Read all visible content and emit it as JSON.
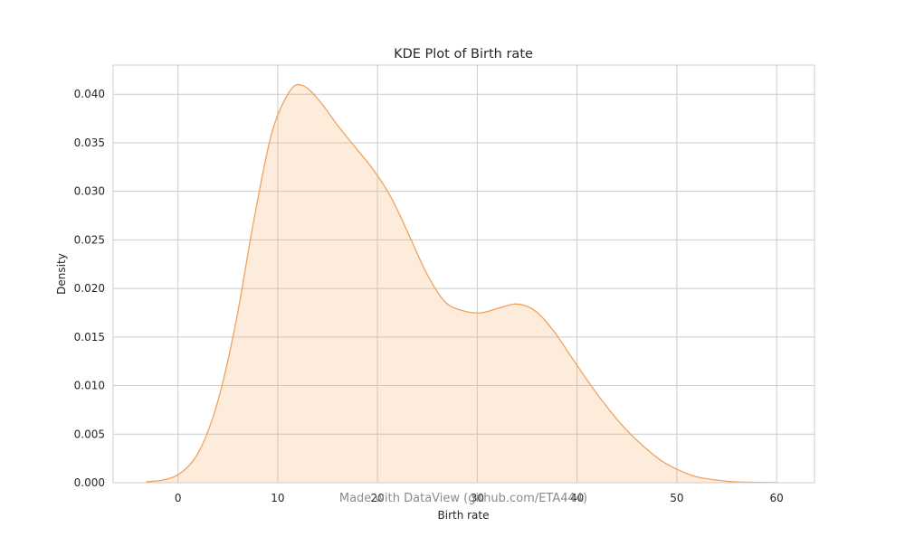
{
  "chart_data": {
    "type": "area",
    "title": "KDE Plot of Birth rate",
    "xlabel": "Birth rate",
    "ylabel": "Density",
    "xlim": [
      -6.5,
      63.8
    ],
    "ylim": [
      0,
      0.043
    ],
    "xticks": [
      0,
      10,
      20,
      30,
      40,
      50,
      60
    ],
    "xtick_labels": [
      "0",
      "10",
      "20",
      "30",
      "40",
      "50",
      "60"
    ],
    "yticks": [
      0.0,
      0.005,
      0.01,
      0.015,
      0.02,
      0.025,
      0.03,
      0.035,
      0.04
    ],
    "ytick_labels": [
      "0.000",
      "0.005",
      "0.010",
      "0.015",
      "0.020",
      "0.025",
      "0.030",
      "0.035",
      "0.040"
    ],
    "grid": true,
    "series": [
      {
        "x": [
          -3.2,
          -1.4,
          0.4,
          2.2,
          4.0,
          5.8,
          7.6,
          9.4,
          11.2,
          12.5,
          14.2,
          16.0,
          17.8,
          19.6,
          21.4,
          23.2,
          25.0,
          26.8,
          28.6,
          30.4,
          32.2,
          34.0,
          35.8,
          37.6,
          39.4,
          41.2,
          43.0,
          44.8,
          46.6,
          48.4,
          50.2,
          52.0,
          53.8,
          55.6,
          57.4,
          59.2,
          60.2
        ],
        "y": [
          0.0001,
          0.0003,
          0.0011,
          0.0034,
          0.0084,
          0.0165,
          0.027,
          0.036,
          0.0403,
          0.0409,
          0.0393,
          0.0368,
          0.0345,
          0.0322,
          0.0293,
          0.0254,
          0.0214,
          0.0186,
          0.0177,
          0.0175,
          0.018,
          0.0184,
          0.0177,
          0.0157,
          0.013,
          0.0103,
          0.0078,
          0.0056,
          0.0038,
          0.0023,
          0.0013,
          0.0006,
          0.0003,
          0.0001,
          5e-05,
          2e-05,
          1e-05
        ]
      }
    ],
    "colors": {
      "line": "#f0a35d",
      "fill": "#f5a45b",
      "grid": "#cccccc",
      "frame": "#cccccc"
    }
  },
  "watermark": "Made with DataView (github.com/ETA444)"
}
